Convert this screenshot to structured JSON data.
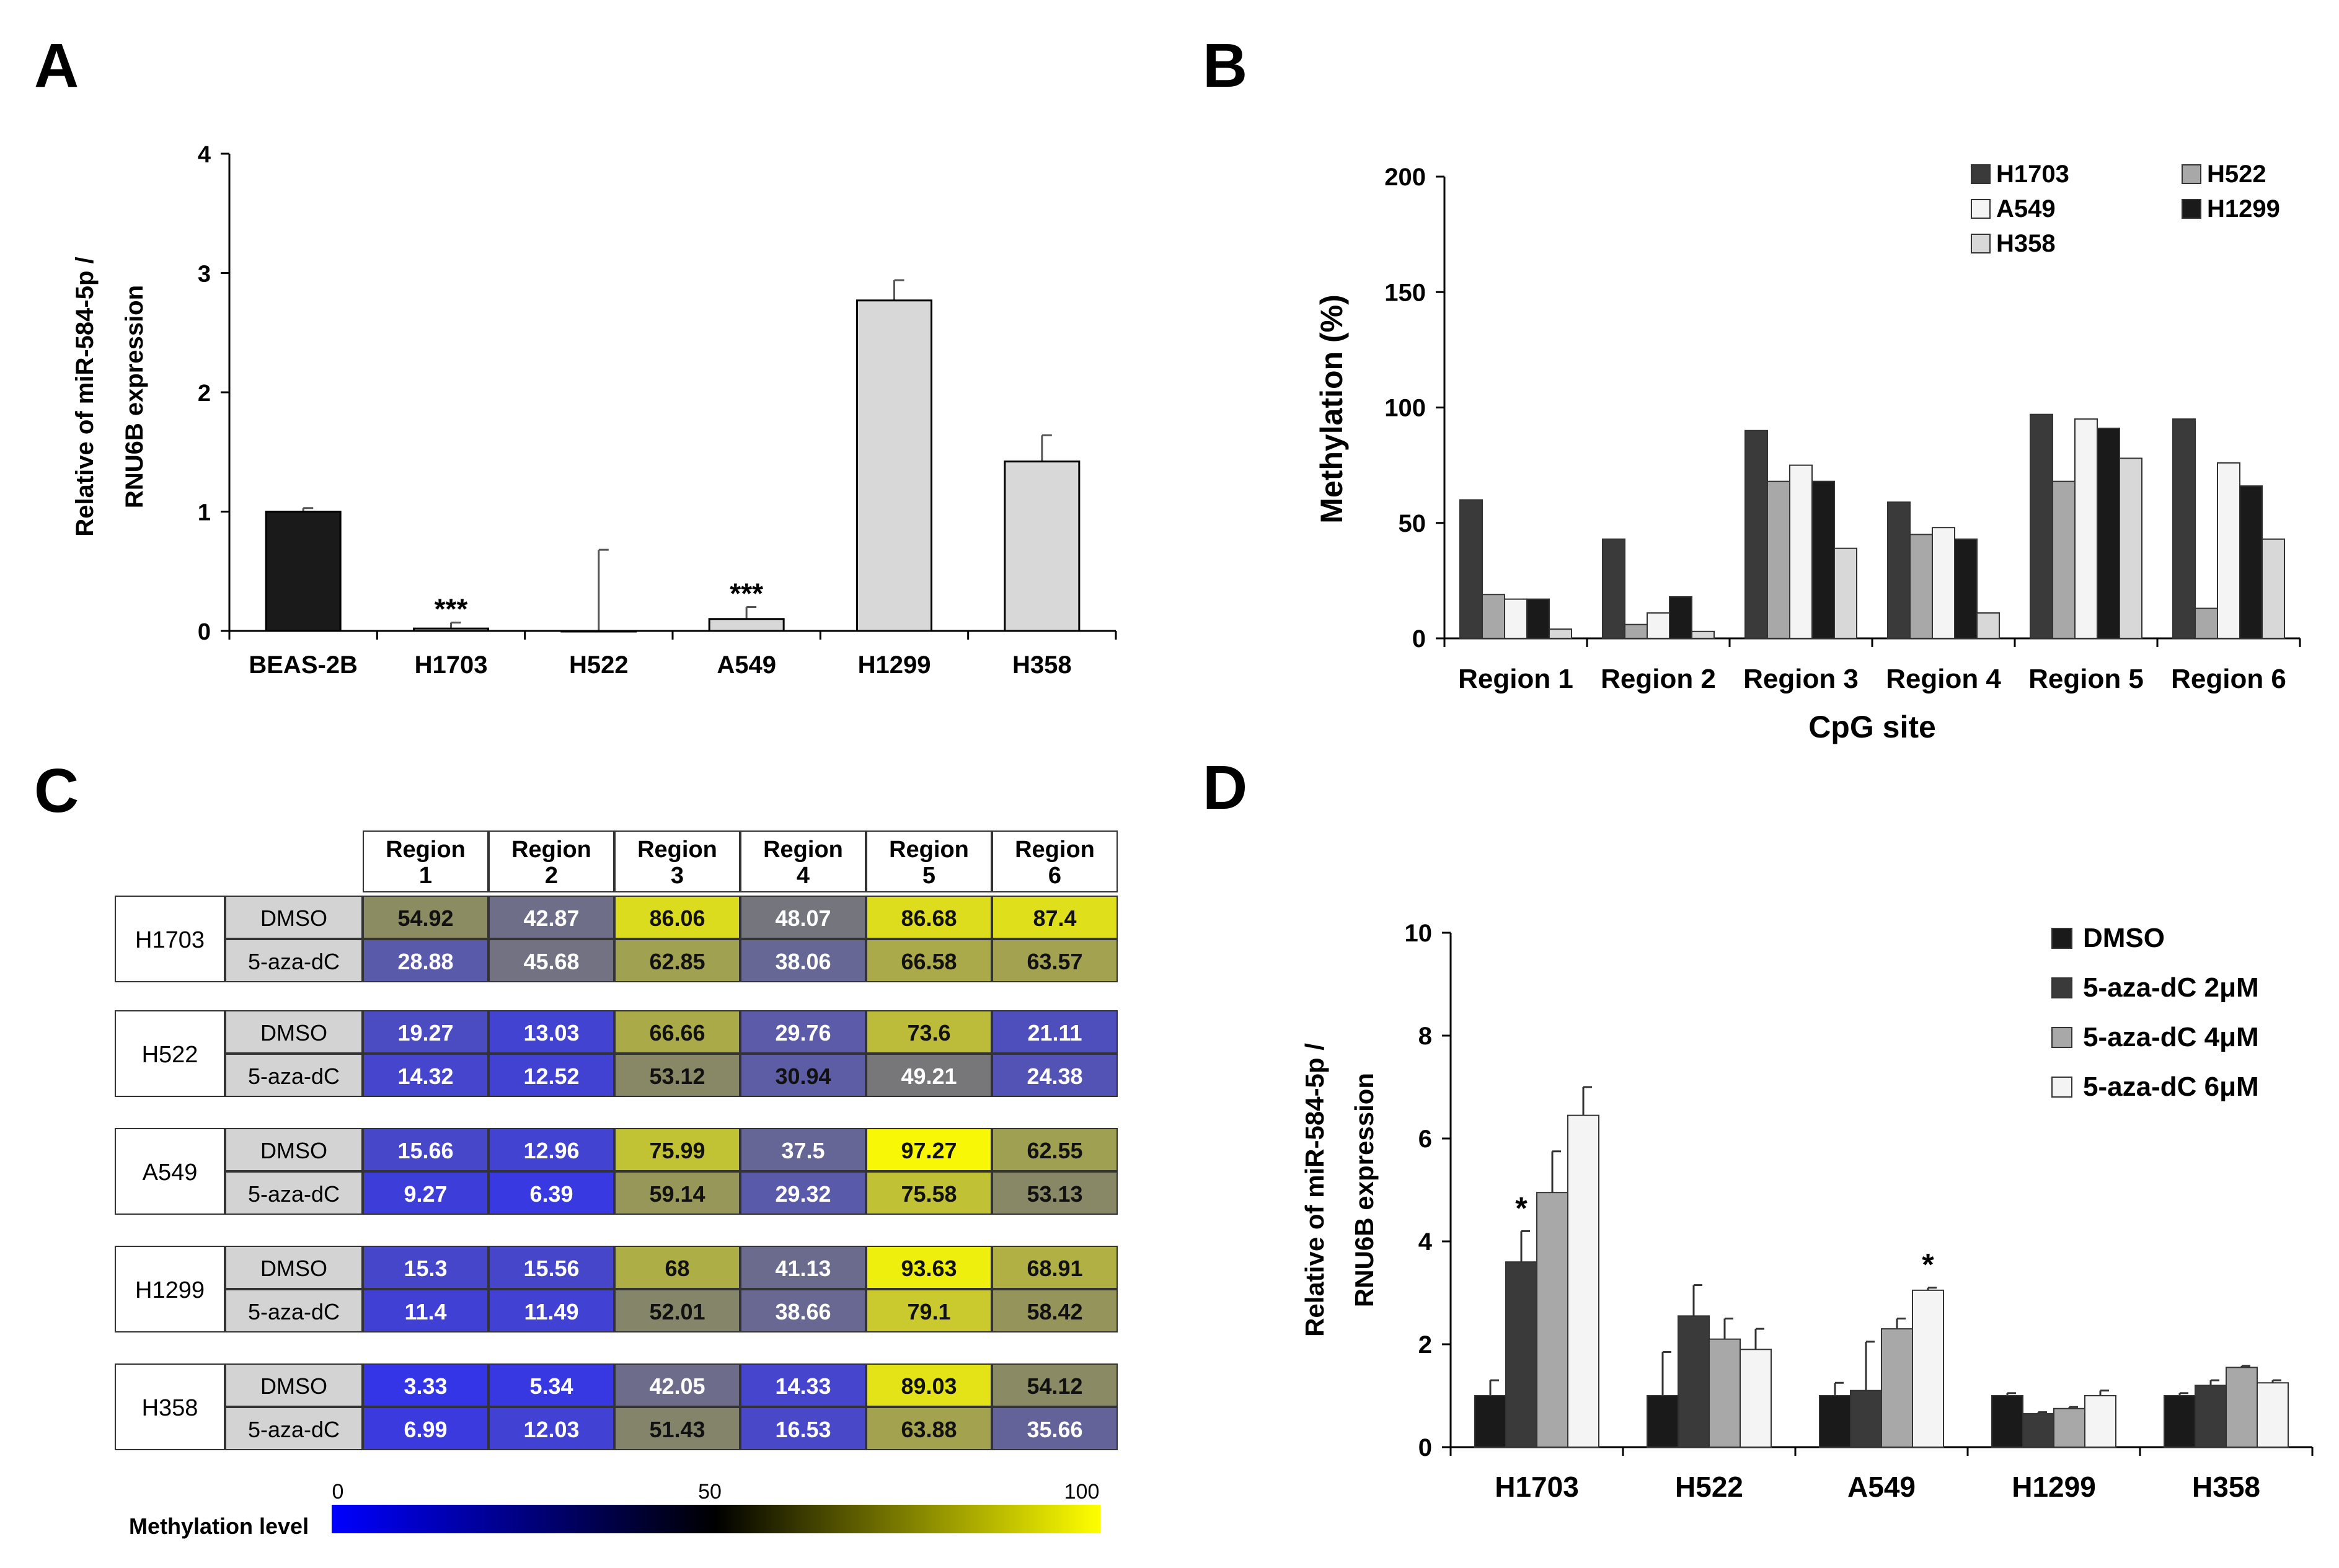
{
  "panels": {
    "A": "A",
    "B": "B",
    "C": "C",
    "D": "D"
  },
  "colors": {
    "black": "#1a1a1a",
    "dark": "#3a3a3a",
    "mid": "#a8a8a8",
    "light": "#d8d8d8",
    "white": "#f4f4f4",
    "label_gray": "#d3d3d3"
  },
  "chart_data": [
    {
      "id": "A",
      "type": "bar",
      "title": "",
      "xlabel": "",
      "ylabel": [
        "Relative of miR-584-5p /",
        "RNU6B expression"
      ],
      "ylim": [
        0,
        4
      ],
      "yticks": [
        0,
        1,
        2,
        3,
        4
      ],
      "categories": [
        "BEAS-2B",
        "H1703",
        "H522",
        "A549",
        "H1299",
        "H358"
      ],
      "values": [
        1.0,
        0.02,
        0.0,
        0.1,
        2.77,
        1.42
      ],
      "errors": [
        0.03,
        0.05,
        0.68,
        0.1,
        0.17,
        0.22
      ],
      "bar_colors": [
        "black",
        "light",
        "light",
        "light",
        "light",
        "light"
      ],
      "annotations": [
        {
          "category": "H1703",
          "text": "***"
        },
        {
          "category": "A549",
          "text": "***"
        }
      ]
    },
    {
      "id": "B",
      "type": "bar",
      "title": "",
      "xlabel": "CpG site",
      "ylabel": "Methylation (%)",
      "ylim": [
        0,
        200
      ],
      "yticks": [
        0,
        50,
        100,
        150,
        200
      ],
      "categories": [
        "Region 1",
        "Region 2",
        "Region 3",
        "Region 4",
        "Region 5",
        "Region 6"
      ],
      "legend_position": "top-right",
      "series": [
        {
          "name": "H1703",
          "color": "dark",
          "values": [
            60,
            43,
            90,
            59,
            97,
            95
          ]
        },
        {
          "name": "H522",
          "color": "mid",
          "values": [
            19,
            6,
            68,
            45,
            68,
            13
          ]
        },
        {
          "name": "A549",
          "color": "white",
          "values": [
            17,
            11,
            75,
            48,
            95,
            76
          ]
        },
        {
          "name": "H1299",
          "color": "black",
          "values": [
            17,
            18,
            68,
            43,
            91,
            66
          ]
        },
        {
          "name": "H358",
          "color": "light",
          "values": [
            4,
            3,
            39,
            11,
            78,
            43
          ]
        }
      ]
    },
    {
      "id": "C",
      "type": "heatmap",
      "title": "",
      "columns": [
        {
          "l1": "Region",
          "l2": "1"
        },
        {
          "l1": "Region",
          "l2": "2"
        },
        {
          "l1": "Region",
          "l2": "3"
        },
        {
          "l1": "Region",
          "l2": "4"
        },
        {
          "l1": "Region",
          "l2": "5"
        },
        {
          "l1": "Region",
          "l2": "6"
        }
      ],
      "groups": [
        {
          "cell": "H1703",
          "rows": [
            {
              "treatment": "DMSO",
              "values": [
                "54.92",
                "42.87",
                "86.06",
                "48.07",
                "86.68",
                "87.4"
              ]
            },
            {
              "treatment": "5-aza-dC",
              "values": [
                "28.88",
                "45.68",
                "62.85",
                "38.06",
                "66.58",
                "63.57"
              ]
            }
          ]
        },
        {
          "cell": "H522",
          "rows": [
            {
              "treatment": "DMSO",
              "values": [
                "19.27",
                "13.03",
                "66.66",
                "29.76",
                "73.6",
                "21.11"
              ]
            },
            {
              "treatment": "5-aza-dC",
              "values": [
                "14.32",
                "12.52",
                "53.12",
                "30.94",
                "49.21",
                "24.38"
              ]
            }
          ]
        },
        {
          "cell": "A549",
          "rows": [
            {
              "treatment": "DMSO",
              "values": [
                "15.66",
                "12.96",
                "75.99",
                "37.5",
                "97.27",
                "62.55"
              ]
            },
            {
              "treatment": "5-aza-dC",
              "values": [
                "9.27",
                "6.39",
                "59.14",
                "29.32",
                "75.58",
                "53.13"
              ]
            }
          ]
        },
        {
          "cell": "H1299",
          "rows": [
            {
              "treatment": "DMSO",
              "values": [
                "15.3",
                "15.56",
                "68",
                "41.13",
                "93.63",
                "68.91"
              ]
            },
            {
              "treatment": "5-aza-dC",
              "values": [
                "11.4",
                "11.49",
                "52.01",
                "38.66",
                "79.1",
                "58.42"
              ]
            }
          ]
        },
        {
          "cell": "H358",
          "rows": [
            {
              "treatment": "DMSO",
              "values": [
                "3.33",
                "5.34",
                "42.05",
                "14.33",
                "89.03",
                "54.12"
              ]
            },
            {
              "treatment": "5-aza-dC",
              "values": [
                "6.99",
                "12.03",
                "51.43",
                "16.53",
                "63.88",
                "35.66"
              ]
            }
          ]
        }
      ],
      "colorbar": {
        "label": "Methylation level",
        "min": "0",
        "mid": "50",
        "max": "100",
        "low_color": "#0000ff",
        "mid_color": "#000000",
        "high_color": "#ffff00"
      }
    },
    {
      "id": "D",
      "type": "bar",
      "title": "",
      "xlabel": "",
      "ylabel": [
        "Relative of miR-584-5p /",
        "RNU6B expression"
      ],
      "ylim": [
        0,
        10
      ],
      "yticks": [
        0,
        2,
        4,
        6,
        8,
        10
      ],
      "categories": [
        "H1703",
        "H522",
        "A549",
        "H1299",
        "H358"
      ],
      "legend_position": "top-right",
      "series": [
        {
          "name": "DMSO",
          "color": "black",
          "values": [
            1.0,
            1.0,
            1.0,
            1.0,
            1.0
          ],
          "errors": [
            0.3,
            0.85,
            0.25,
            0.05,
            0.05
          ]
        },
        {
          "name": "5-aza-dC 2μM",
          "color": "dark",
          "values": [
            3.6,
            2.55,
            1.1,
            0.65,
            1.2
          ],
          "errors": [
            0.6,
            0.6,
            0.95,
            0.03,
            0.1
          ]
        },
        {
          "name": "5-aza-dC 4μM",
          "color": "mid",
          "values": [
            4.95,
            2.1,
            2.3,
            0.75,
            1.55
          ],
          "errors": [
            0.8,
            0.4,
            0.2,
            0.03,
            0.03
          ]
        },
        {
          "name": "5-aza-dC 6μM",
          "color": "white",
          "values": [
            6.45,
            1.9,
            3.05,
            1.0,
            1.25
          ],
          "errors": [
            0.55,
            0.4,
            0.05,
            0.1,
            0.05
          ]
        }
      ],
      "annotations": [
        {
          "category": "H1703",
          "series": "5-aza-dC 2μM",
          "text": "*"
        },
        {
          "category": "A549",
          "series": "5-aza-dC 6μM",
          "text": "*"
        }
      ]
    }
  ]
}
